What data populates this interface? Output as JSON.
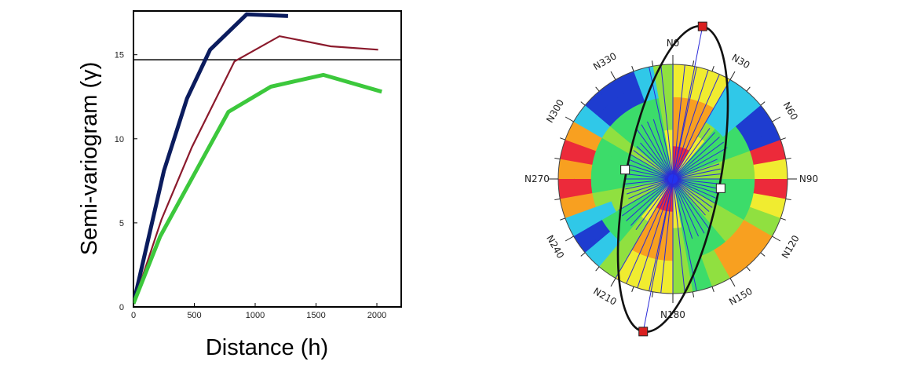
{
  "chart_data": [
    {
      "type": "line",
      "title": "",
      "xlabel": "Distance (h)",
      "ylabel": "Semi-variogram (γ)",
      "xlim": [
        0,
        2200
      ],
      "ylim": [
        0,
        17.6
      ],
      "xticks": [
        0,
        500,
        1000,
        1500,
        2000
      ],
      "yticks": [
        0,
        5,
        10,
        15
      ],
      "grid": false,
      "reference_line": {
        "y": 14.7,
        "color": "#000000"
      },
      "series": [
        {
          "color": "#0b1c5e",
          "x": [
            0,
            250,
            440,
            630,
            930,
            1270
          ],
          "y": [
            0.2,
            8.1,
            12.4,
            15.3,
            17.4,
            17.3
          ]
        },
        {
          "color": "#8b1a2c",
          "x": [
            0,
            230,
            480,
            830,
            1200,
            1620,
            2010
          ],
          "y": [
            0.2,
            5.2,
            9.5,
            14.6,
            16.1,
            15.5,
            15.3
          ]
        },
        {
          "color": "#3cc83c",
          "x": [
            0,
            220,
            470,
            780,
            1130,
            1560,
            2040
          ],
          "y": [
            0.2,
            4.2,
            7.5,
            11.6,
            13.1,
            13.8,
            12.8
          ]
        }
      ]
    },
    {
      "type": "heatmap",
      "title": "",
      "projection": "polar",
      "direction_labels": [
        "N0",
        "N30",
        "N60",
        "N90",
        "N120",
        "N150",
        "N180",
        "N210",
        "N240",
        "N270",
        "N300",
        "N330"
      ],
      "colorscale": [
        "#1e3cd0",
        "#30c8e8",
        "#3cdc6a",
        "#90e040",
        "#f0ec30",
        "#f8a020",
        "#ec2a3a"
      ],
      "anisotropy_ellipse": {
        "major_axis_azimuth_deg": 11,
        "color": "#111111"
      },
      "markers": {
        "major_axis_ends": "#d92020",
        "minor_axis_ends": "#ffffff"
      }
    }
  ]
}
